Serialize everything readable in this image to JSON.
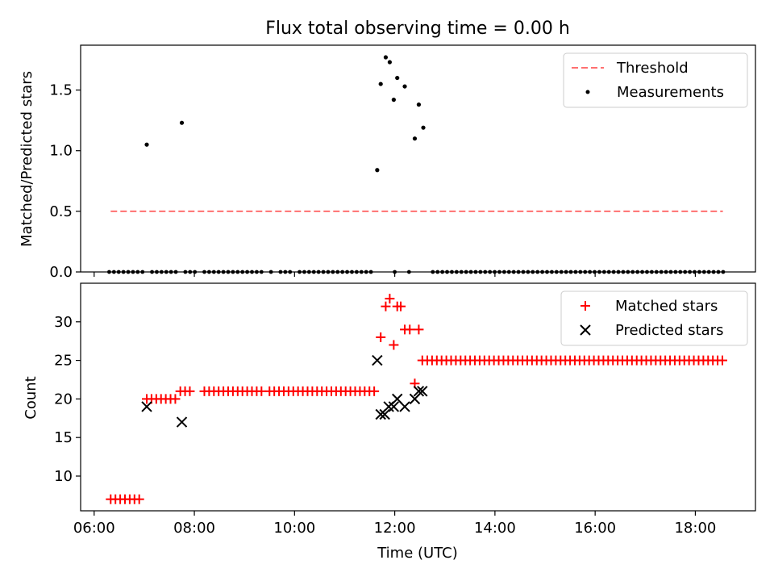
{
  "figure": {
    "title": "Flux total observing time = 0.00 h"
  },
  "chart_data": [
    {
      "type": "scatter",
      "ylabel": "Matched/Predicted stars",
      "ylim": [
        0,
        1.87
      ],
      "xlim": [
        5.73,
        19.2
      ],
      "yticks": [
        0.0,
        0.5,
        1.0,
        1.5
      ],
      "ytick_labels": [
        "0.0",
        "0.5",
        "1.0",
        "1.5"
      ],
      "xticks": [
        6,
        8,
        10,
        12,
        14,
        16,
        18
      ],
      "show_xtick_labels": false,
      "legend": {
        "placement": "top-right",
        "entries": [
          "Threshold",
          "Measurements"
        ]
      },
      "threshold": {
        "name": "Threshold",
        "value": 0.5,
        "x_range": [
          6.33,
          18.55
        ],
        "color": "#ff7070"
      },
      "measurements": {
        "name": "Measurements",
        "color": "#000000",
        "points": [
          [
            7.05,
            1.05
          ],
          [
            7.75,
            1.23
          ],
          [
            11.65,
            0.84
          ],
          [
            11.72,
            1.55
          ],
          [
            11.82,
            1.77
          ],
          [
            11.9,
            1.73
          ],
          [
            11.98,
            1.42
          ],
          [
            12.05,
            1.6
          ],
          [
            12.2,
            1.53
          ],
          [
            12.4,
            1.1
          ],
          [
            12.48,
            1.38
          ],
          [
            12.57,
            1.19
          ]
        ],
        "zero_x_start": 6.3,
        "zero_x_end": 18.6,
        "zero_x_step": 0.095,
        "zero_gaps": [
          [
            7.0,
            7.15
          ],
          [
            7.7,
            7.8
          ],
          [
            8.06,
            8.14
          ],
          [
            9.42,
            9.5
          ],
          [
            9.6,
            9.68
          ],
          [
            10.0,
            10.05
          ],
          [
            11.6,
            11.95
          ],
          [
            12.02,
            12.26
          ],
          [
            12.34,
            12.7
          ]
        ]
      }
    },
    {
      "type": "scatter",
      "xlabel": "Time (UTC)",
      "ylabel": "Count",
      "ylim": [
        5.5,
        35.0
      ],
      "xlim": [
        5.73,
        19.2
      ],
      "yticks": [
        10,
        15,
        20,
        25,
        30
      ],
      "ytick_labels": [
        "10",
        "15",
        "20",
        "25",
        "30"
      ],
      "xticks": [
        6,
        8,
        10,
        12,
        14,
        16,
        18
      ],
      "xtick_labels": [
        "06:00",
        "08:00",
        "10:00",
        "12:00",
        "14:00",
        "16:00",
        "18:00"
      ],
      "legend": {
        "placement": "top-right",
        "entries": [
          "Matched stars",
          "Predicted stars"
        ]
      },
      "matched": {
        "name": "Matched stars",
        "color": "#ff0000",
        "runs": [
          {
            "x_start": 6.33,
            "x_end": 6.97,
            "y": 7
          },
          {
            "x_start": 7.05,
            "x_end": 7.65,
            "y": 20
          },
          {
            "x_start": 7.72,
            "x_end": 8.0,
            "y": 21
          },
          {
            "x_start": 8.2,
            "x_end": 9.4,
            "y": 21
          },
          {
            "x_start": 9.5,
            "x_end": 11.62,
            "y": 21
          },
          {
            "x_start": 12.65,
            "x_end": 18.55,
            "y": 25
          }
        ],
        "points": [
          [
            11.72,
            28
          ],
          [
            11.82,
            32
          ],
          [
            11.9,
            33
          ],
          [
            11.98,
            27
          ],
          [
            12.05,
            32
          ],
          [
            12.12,
            32
          ],
          [
            12.2,
            29
          ],
          [
            12.3,
            29
          ],
          [
            12.4,
            22
          ],
          [
            12.48,
            29
          ],
          [
            12.55,
            25
          ]
        ]
      },
      "predicted": {
        "name": "Predicted stars",
        "color": "#000000",
        "points": [
          [
            7.05,
            19
          ],
          [
            7.75,
            17
          ],
          [
            11.65,
            25
          ],
          [
            11.72,
            18
          ],
          [
            11.8,
            18
          ],
          [
            11.88,
            19
          ],
          [
            11.98,
            19
          ],
          [
            12.05,
            20
          ],
          [
            12.2,
            19
          ],
          [
            12.4,
            20
          ],
          [
            12.48,
            21
          ],
          [
            12.55,
            21
          ]
        ]
      }
    }
  ]
}
